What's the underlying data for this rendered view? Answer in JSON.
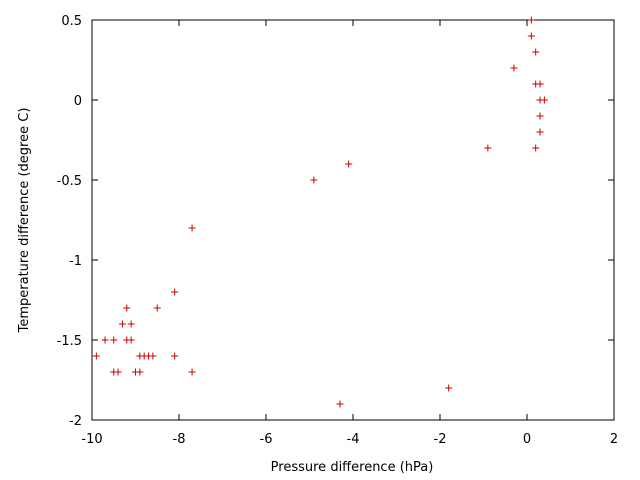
{
  "chart_data": {
    "type": "scatter",
    "xlabel": "Pressure difference (hPa)",
    "ylabel": "Temperature difference (degree C)",
    "xlim": [
      -10,
      2
    ],
    "ylim": [
      -2,
      0.5
    ],
    "xticks": [
      -10,
      -8,
      -6,
      -4,
      -2,
      0,
      2
    ],
    "yticks": [
      -2,
      -1.5,
      -1,
      -0.5,
      0,
      0.5
    ],
    "xtick_labels": [
      "-10",
      "-8",
      "-6",
      "-4",
      "-2",
      "0",
      "2"
    ],
    "ytick_labels": [
      "-2",
      "-1.5",
      "-1",
      "-0.5",
      "0",
      "0.5"
    ],
    "grid": false,
    "marker": "+",
    "marker_color": "#cc0000",
    "points": [
      {
        "x": 0.1,
        "y": 0.5
      },
      {
        "x": 0.1,
        "y": 0.4
      },
      {
        "x": 0.2,
        "y": 0.3
      },
      {
        "x": -0.3,
        "y": 0.2
      },
      {
        "x": 0.2,
        "y": 0.1
      },
      {
        "x": 0.3,
        "y": 0.1
      },
      {
        "x": 0.3,
        "y": 0.0
      },
      {
        "x": 0.4,
        "y": 0.0
      },
      {
        "x": 0.3,
        "y": -0.1
      },
      {
        "x": 0.3,
        "y": -0.2
      },
      {
        "x": 0.2,
        "y": -0.3
      },
      {
        "x": -0.9,
        "y": -0.3
      },
      {
        "x": -4.1,
        "y": -0.4
      },
      {
        "x": -4.9,
        "y": -0.5
      },
      {
        "x": -7.7,
        "y": -0.8
      },
      {
        "x": -8.1,
        "y": -1.2
      },
      {
        "x": -8.5,
        "y": -1.3
      },
      {
        "x": -9.2,
        "y": -1.3
      },
      {
        "x": -9.3,
        "y": -1.4
      },
      {
        "x": -9.1,
        "y": -1.4
      },
      {
        "x": -9.7,
        "y": -1.5
      },
      {
        "x": -9.5,
        "y": -1.5
      },
      {
        "x": -9.2,
        "y": -1.5
      },
      {
        "x": -9.1,
        "y": -1.5
      },
      {
        "x": -9.9,
        "y": -1.6
      },
      {
        "x": -8.9,
        "y": -1.6
      },
      {
        "x": -8.8,
        "y": -1.6
      },
      {
        "x": -8.7,
        "y": -1.6
      },
      {
        "x": -8.6,
        "y": -1.6
      },
      {
        "x": -8.1,
        "y": -1.6
      },
      {
        "x": -9.5,
        "y": -1.7
      },
      {
        "x": -9.4,
        "y": -1.7
      },
      {
        "x": -9.0,
        "y": -1.7
      },
      {
        "x": -8.9,
        "y": -1.7
      },
      {
        "x": -7.7,
        "y": -1.7
      },
      {
        "x": -1.8,
        "y": -1.8
      },
      {
        "x": -4.3,
        "y": -1.9
      }
    ]
  }
}
